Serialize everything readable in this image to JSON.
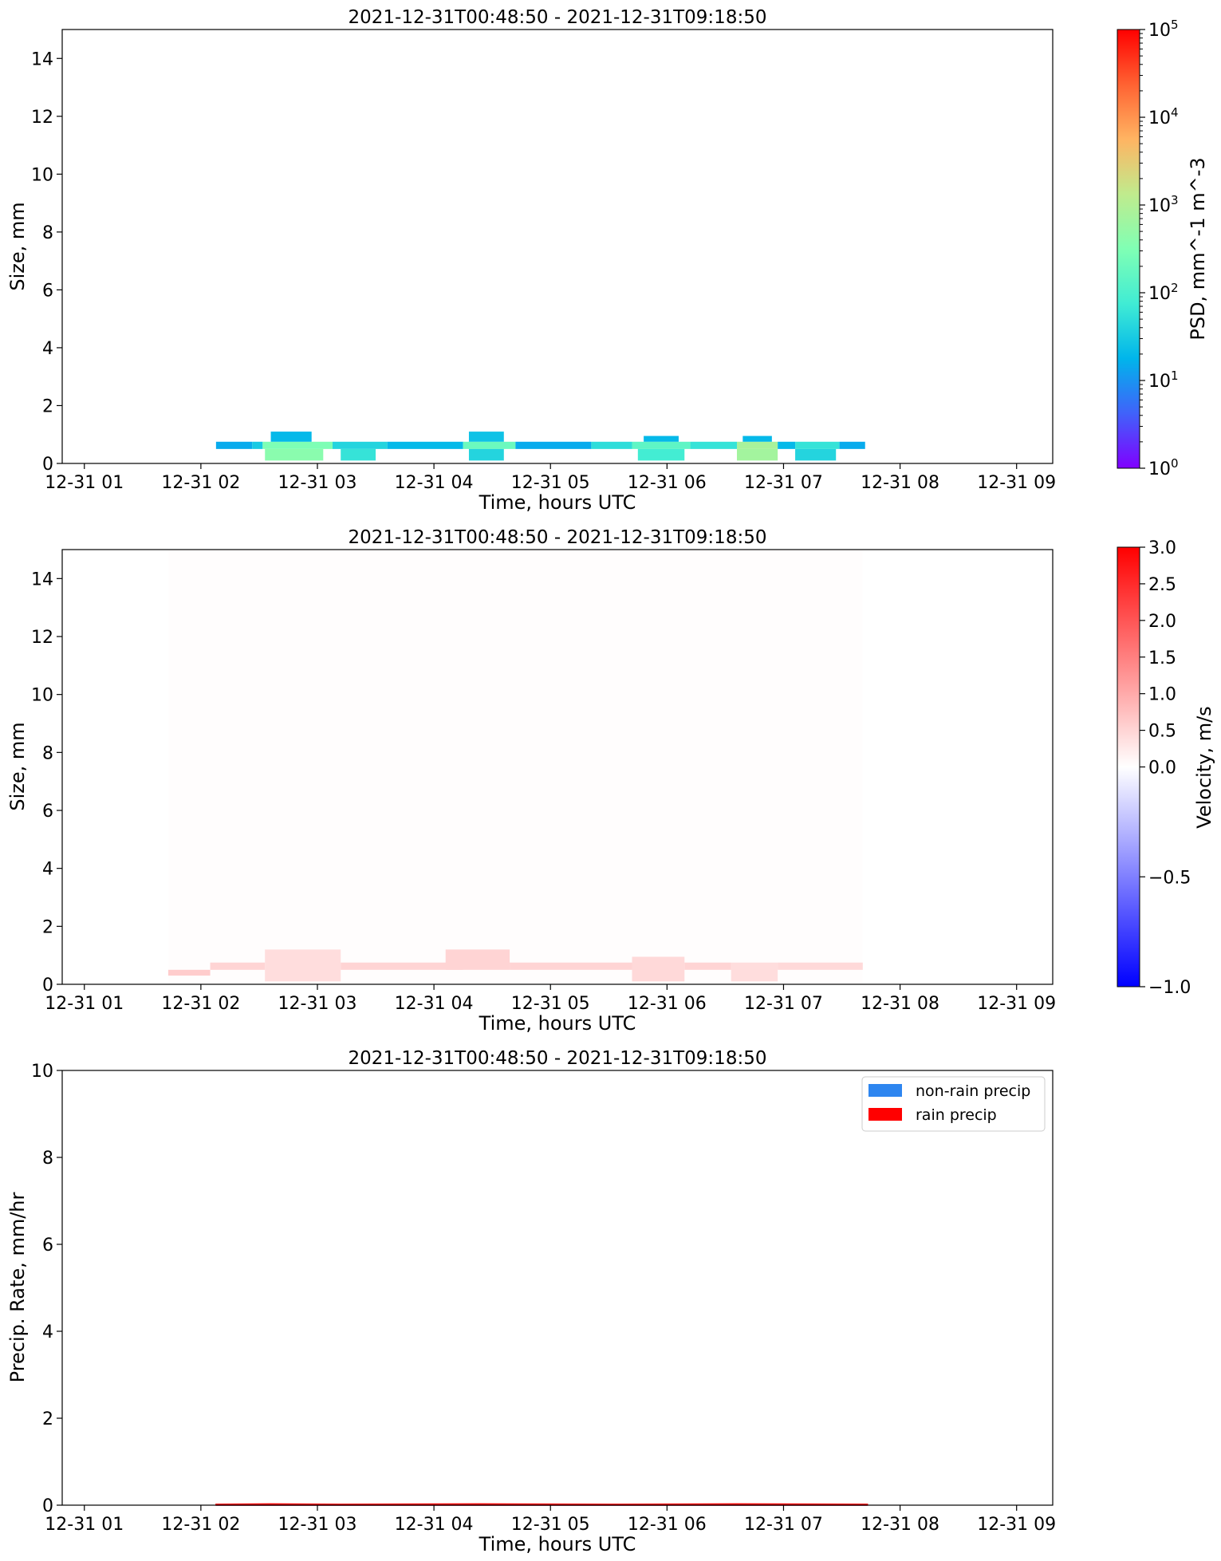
{
  "chart_data": [
    {
      "type": "heatmap",
      "title": "2021-12-31T00:48:50 - 2021-12-31T09:18:50",
      "xlabel": "Time, hours UTC",
      "ylabel": "Size, mm",
      "xtick_labels": [
        "12-31 01",
        "12-31 02",
        "12-31 03",
        "12-31 04",
        "12-31 05",
        "12-31 06",
        "12-31 07",
        "12-31 08",
        "12-31 09"
      ],
      "xlim": [
        0.81,
        9.31
      ],
      "ylim": [
        0,
        15
      ],
      "yticks": [
        0,
        2,
        4,
        6,
        8,
        10,
        12,
        14
      ],
      "colorbar": {
        "label": "PSD, mm^-1 m^-3",
        "scale": "log",
        "colormap": "rainbow",
        "range": [
          1,
          100000
        ],
        "tick_labels": [
          {
            "base": "10",
            "exp": "0"
          },
          {
            "base": "10",
            "exp": "1"
          },
          {
            "base": "10",
            "exp": "2"
          },
          {
            "base": "10",
            "exp": "3"
          },
          {
            "base": "10",
            "exp": "4"
          },
          {
            "base": "10",
            "exp": "5"
          }
        ]
      },
      "cells": [
        {
          "t0": 2.13,
          "t1": 2.44,
          "d0": 0.5,
          "d1": 0.75,
          "v": 15
        },
        {
          "t0": 2.44,
          "t1": 2.53,
          "d0": 0.5,
          "d1": 0.75,
          "v": 30
        },
        {
          "t0": 2.53,
          "t1": 3.13,
          "d0": 0.5,
          "d1": 0.75,
          "v": 300
        },
        {
          "t0": 2.55,
          "t1": 3.05,
          "d0": 0.1,
          "d1": 0.5,
          "v": 400
        },
        {
          "t0": 2.6,
          "t1": 2.95,
          "d0": 0.75,
          "d1": 1.1,
          "v": 20
        },
        {
          "t0": 3.13,
          "t1": 3.6,
          "d0": 0.5,
          "d1": 0.75,
          "v": 40
        },
        {
          "t0": 3.2,
          "t1": 3.5,
          "d0": 0.1,
          "d1": 0.5,
          "v": 60
        },
        {
          "t0": 3.6,
          "t1": 4.25,
          "d0": 0.5,
          "d1": 0.75,
          "v": 20
        },
        {
          "t0": 4.25,
          "t1": 4.7,
          "d0": 0.5,
          "d1": 0.75,
          "v": 200
        },
        {
          "t0": 4.3,
          "t1": 4.6,
          "d0": 0.75,
          "d1": 1.1,
          "v": 25
        },
        {
          "t0": 4.3,
          "t1": 4.6,
          "d0": 0.1,
          "d1": 0.5,
          "v": 40
        },
        {
          "t0": 4.7,
          "t1": 5.35,
          "d0": 0.5,
          "d1": 0.75,
          "v": 15
        },
        {
          "t0": 5.35,
          "t1": 5.7,
          "d0": 0.5,
          "d1": 0.75,
          "v": 50
        },
        {
          "t0": 5.7,
          "t1": 6.2,
          "d0": 0.5,
          "d1": 0.75,
          "v": 150
        },
        {
          "t0": 5.75,
          "t1": 6.15,
          "d0": 0.1,
          "d1": 0.5,
          "v": 80
        },
        {
          "t0": 5.8,
          "t1": 6.1,
          "d0": 0.75,
          "d1": 0.95,
          "v": 20
        },
        {
          "t0": 6.2,
          "t1": 6.6,
          "d0": 0.5,
          "d1": 0.75,
          "v": 60
        },
        {
          "t0": 6.6,
          "t1": 6.95,
          "d0": 0.5,
          "d1": 0.75,
          "v": 800
        },
        {
          "t0": 6.6,
          "t1": 6.95,
          "d0": 0.1,
          "d1": 0.5,
          "v": 700
        },
        {
          "t0": 6.65,
          "t1": 6.9,
          "d0": 0.75,
          "d1": 0.95,
          "v": 20
        },
        {
          "t0": 6.95,
          "t1": 7.1,
          "d0": 0.5,
          "d1": 0.75,
          "v": 20
        },
        {
          "t0": 7.1,
          "t1": 7.48,
          "d0": 0.5,
          "d1": 0.75,
          "v": 60
        },
        {
          "t0": 7.1,
          "t1": 7.45,
          "d0": 0.1,
          "d1": 0.5,
          "v": 40
        },
        {
          "t0": 7.48,
          "t1": 7.7,
          "d0": 0.5,
          "d1": 0.75,
          "v": 15
        }
      ]
    },
    {
      "type": "heatmap",
      "title": "2021-12-31T00:48:50 - 2021-12-31T09:18:50",
      "xlabel": "Time, hours UTC",
      "ylabel": "Size, mm",
      "xtick_labels": [
        "12-31 01",
        "12-31 02",
        "12-31 03",
        "12-31 04",
        "12-31 05",
        "12-31 06",
        "12-31 07",
        "12-31 08",
        "12-31 09"
      ],
      "xlim": [
        0.81,
        9.31
      ],
      "ylim": [
        0,
        15
      ],
      "yticks": [
        0,
        2,
        4,
        6,
        8,
        10,
        12,
        14
      ],
      "colorbar": {
        "label": "Velocity, m/s",
        "scale": "two-slope",
        "colormap": "bwr",
        "range": [
          -1,
          3
        ],
        "ticks": [
          -1,
          -0.5,
          0,
          0.5,
          1,
          1.5,
          2,
          2.5,
          3
        ],
        "tick_labels": [
          "−1.0",
          "−0.5",
          "0.0",
          "0.5",
          "1.0",
          "1.5",
          "2.0",
          "2.5",
          "3.0"
        ]
      },
      "cells": [
        {
          "t0": 1.72,
          "t1": 7.68,
          "d0": 0,
          "d1": 15,
          "v": 0.02
        },
        {
          "t0": 1.72,
          "t1": 2.08,
          "d0": 0.3,
          "d1": 0.5,
          "v": 0.6
        },
        {
          "t0": 2.08,
          "t1": 2.55,
          "d0": 0.5,
          "d1": 0.75,
          "v": 0.5
        },
        {
          "t0": 2.55,
          "t1": 3.2,
          "d0": 0.1,
          "d1": 1.2,
          "v": 0.4
        },
        {
          "t0": 3.2,
          "t1": 4.25,
          "d0": 0.5,
          "d1": 0.75,
          "v": 0.5
        },
        {
          "t0": 4.1,
          "t1": 4.65,
          "d0": 0.5,
          "d1": 1.2,
          "v": 0.5
        },
        {
          "t0": 4.65,
          "t1": 5.7,
          "d0": 0.5,
          "d1": 0.75,
          "v": 0.5
        },
        {
          "t0": 5.7,
          "t1": 6.15,
          "d0": 0.1,
          "d1": 0.95,
          "v": 0.45
        },
        {
          "t0": 6.15,
          "t1": 6.55,
          "d0": 0.5,
          "d1": 0.75,
          "v": 0.5
        },
        {
          "t0": 6.55,
          "t1": 6.95,
          "d0": 0.1,
          "d1": 0.75,
          "v": 0.4
        },
        {
          "t0": 6.95,
          "t1": 7.68,
          "d0": 0.5,
          "d1": 0.75,
          "v": 0.45
        }
      ]
    },
    {
      "type": "area",
      "title": "2021-12-31T00:48:50 - 2021-12-31T09:18:50",
      "xlabel": "Time, hours UTC",
      "ylabel": "Precip. Rate, mm/hr",
      "xtick_labels": [
        "12-31 01",
        "12-31 02",
        "12-31 03",
        "12-31 04",
        "12-31 05",
        "12-31 06",
        "12-31 07",
        "12-31 08",
        "12-31 09"
      ],
      "xlim": [
        0.81,
        9.31
      ],
      "ylim": [
        0,
        10
      ],
      "yticks": [
        0,
        2,
        4,
        6,
        8,
        10
      ],
      "legend": "top-right",
      "series": [
        {
          "name": "non-rain precip",
          "color": "#2e86f0",
          "x": [
            2.13,
            7.72
          ],
          "y": [
            0,
            0
          ]
        },
        {
          "name": "rain precip",
          "color": "#ff0000",
          "x": [
            2.13,
            2.6,
            3.2,
            4.4,
            5.6,
            6.6,
            7.72
          ],
          "y": [
            0.02,
            0.03,
            0.02,
            0.03,
            0.02,
            0.03,
            0.02
          ]
        }
      ]
    }
  ]
}
